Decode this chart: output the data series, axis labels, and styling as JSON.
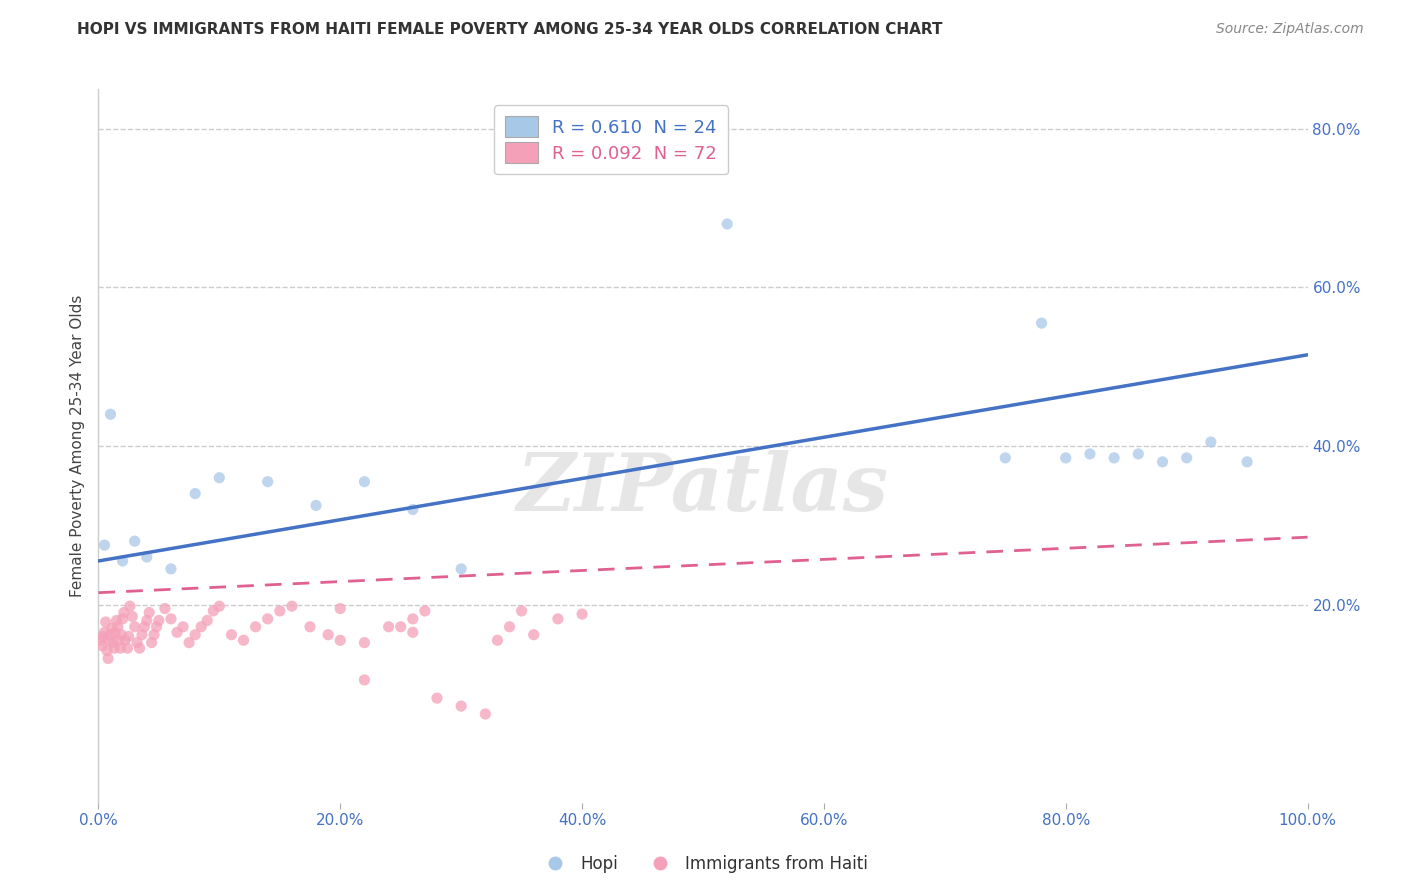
{
  "title": "HOPI VS IMMIGRANTS FROM HAITI FEMALE POVERTY AMONG 25-34 YEAR OLDS CORRELATION CHART",
  "source": "Source: ZipAtlas.com",
  "ylabel": "Female Poverty Among 25-34 Year Olds",
  "xlabel": "",
  "watermark": "ZIPatlas",
  "hopi_color": "#a8c8e8",
  "haiti_color": "#f4a0b8",
  "hopi_line_color": "#4472c4",
  "haiti_line_color": "#e06090",
  "hopi_R": 0.61,
  "hopi_N": 24,
  "haiti_R": 0.092,
  "haiti_N": 72,
  "hopi_scatter_x": [
    0.005,
    0.01,
    0.02,
    0.03,
    0.04,
    0.06,
    0.08,
    0.1,
    0.14,
    0.18,
    0.22,
    0.26,
    0.3,
    0.52,
    0.75,
    0.78,
    0.8,
    0.82,
    0.84,
    0.86,
    0.88,
    0.9,
    0.92,
    0.95
  ],
  "hopi_scatter_y": [
    0.275,
    0.44,
    0.255,
    0.28,
    0.26,
    0.245,
    0.34,
    0.36,
    0.355,
    0.325,
    0.355,
    0.32,
    0.245,
    0.68,
    0.385,
    0.555,
    0.385,
    0.39,
    0.385,
    0.39,
    0.38,
    0.385,
    0.405,
    0.38
  ],
  "haiti_scatter_x": [
    0.002,
    0.003,
    0.004,
    0.005,
    0.006,
    0.007,
    0.008,
    0.009,
    0.01,
    0.011,
    0.012,
    0.013,
    0.014,
    0.015,
    0.016,
    0.017,
    0.018,
    0.019,
    0.02,
    0.021,
    0.022,
    0.024,
    0.025,
    0.026,
    0.028,
    0.03,
    0.032,
    0.034,
    0.036,
    0.038,
    0.04,
    0.042,
    0.044,
    0.046,
    0.048,
    0.05,
    0.055,
    0.06,
    0.065,
    0.07,
    0.075,
    0.08,
    0.085,
    0.09,
    0.095,
    0.1,
    0.11,
    0.12,
    0.13,
    0.14,
    0.15,
    0.16,
    0.175,
    0.19,
    0.2,
    0.22,
    0.24,
    0.26,
    0.28,
    0.3,
    0.32,
    0.34,
    0.36,
    0.38,
    0.4,
    0.25,
    0.27,
    0.22,
    0.26,
    0.33,
    0.35,
    0.2
  ],
  "haiti_scatter_y": [
    0.155,
    0.148,
    0.16,
    0.165,
    0.178,
    0.142,
    0.132,
    0.155,
    0.162,
    0.17,
    0.152,
    0.145,
    0.165,
    0.18,
    0.172,
    0.155,
    0.145,
    0.162,
    0.182,
    0.19,
    0.155,
    0.145,
    0.16,
    0.198,
    0.185,
    0.172,
    0.152,
    0.145,
    0.162,
    0.172,
    0.18,
    0.19,
    0.152,
    0.162,
    0.172,
    0.18,
    0.195,
    0.182,
    0.165,
    0.172,
    0.152,
    0.162,
    0.172,
    0.18,
    0.192,
    0.198,
    0.162,
    0.155,
    0.172,
    0.182,
    0.192,
    0.198,
    0.172,
    0.162,
    0.155,
    0.152,
    0.172,
    0.182,
    0.082,
    0.072,
    0.062,
    0.172,
    0.162,
    0.182,
    0.188,
    0.172,
    0.192,
    0.105,
    0.165,
    0.155,
    0.192,
    0.195
  ],
  "xlim": [
    0.0,
    1.0
  ],
  "ylim": [
    -0.05,
    0.85
  ],
  "xticks": [
    0.0,
    0.2,
    0.4,
    0.6,
    0.8,
    1.0
  ],
  "xticklabels": [
    "0.0%",
    "20.0%",
    "40.0%",
    "60.0%",
    "80.0%",
    "100.0%"
  ],
  "ytick_positions": [
    0.2,
    0.4,
    0.6,
    0.8
  ],
  "yticklabels": [
    "20.0%",
    "40.0%",
    "60.0%",
    "80.0%"
  ],
  "grid_color": "#cccccc",
  "background_color": "#ffffff",
  "marker_size": 65,
  "marker_alpha": 0.75,
  "hopi_line_x0": 0.0,
  "hopi_line_y0": 0.255,
  "hopi_line_x1": 1.0,
  "hopi_line_y1": 0.515,
  "haiti_line_x0": 0.0,
  "haiti_line_y0": 0.215,
  "haiti_line_x1": 1.0,
  "haiti_line_y1": 0.285
}
